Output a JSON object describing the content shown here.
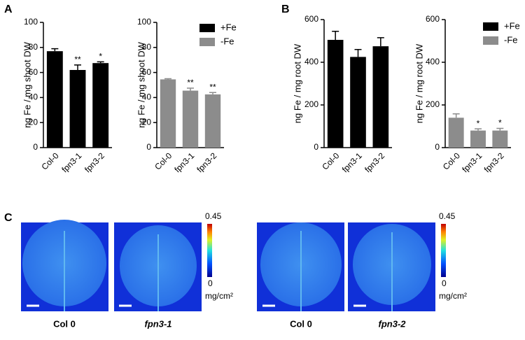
{
  "panels": [
    "A",
    "B",
    "C"
  ],
  "chart_data": [
    {
      "type": "bar",
      "ylabel": "ng Fe / mg shoot DW",
      "categories": [
        "Col-0",
        "fpn3-1",
        "fpn3-2"
      ],
      "values": [
        77,
        62,
        67.5
      ],
      "errors": [
        2,
        4,
        1
      ],
      "annotations": [
        null,
        "**",
        "*"
      ],
      "color": "#000000",
      "ylim": [
        0,
        100
      ],
      "yticks": [
        0,
        20,
        40,
        60,
        80,
        100
      ]
    },
    {
      "type": "bar",
      "ylabel": "ng Fe / mg shoot DW",
      "categories": [
        "Col-0",
        "fpn3-1",
        "fpn3-2"
      ],
      "values": [
        54.5,
        45.5,
        42.5
      ],
      "errors": [
        0.5,
        2,
        1.5
      ],
      "annotations": [
        null,
        "**",
        "**"
      ],
      "color": "#8c8c8c",
      "ylim": [
        0,
        100
      ],
      "yticks": [
        0,
        20,
        40,
        60,
        80,
        100
      ],
      "legend": [
        {
          "name": "+Fe",
          "color": "#000000"
        },
        {
          "name": "-Fe",
          "color": "#8c8c8c"
        }
      ]
    },
    {
      "type": "bar",
      "ylabel": "ng Fe / mg root DW",
      "categories": [
        "Col-0",
        "fpn3-1",
        "fpn3-2"
      ],
      "values": [
        505,
        425,
        475
      ],
      "errors": [
        40,
        35,
        40
      ],
      "annotations": [
        null,
        null,
        null
      ],
      "color": "#000000",
      "ylim": [
        0,
        600
      ],
      "yticks": [
        0,
        200,
        400,
        600
      ]
    },
    {
      "type": "bar",
      "ylabel": "ng Fe / mg root DW",
      "categories": [
        "Col-0",
        "fpn3-1",
        "fpn3-2"
      ],
      "values": [
        140,
        80,
        80
      ],
      "errors": [
        18,
        8,
        10
      ],
      "annotations": [
        null,
        "*",
        "*"
      ],
      "color": "#8c8c8c",
      "ylim": [
        0,
        600
      ],
      "yticks": [
        0,
        200,
        400,
        600
      ],
      "legend": [
        {
          "name": "+Fe",
          "color": "#000000"
        },
        {
          "name": "-Fe",
          "color": "#8c8c8c"
        }
      ]
    }
  ],
  "images": {
    "captions": [
      "Col 0",
      "fpn3-1",
      "Col 0",
      "fpn3-2"
    ],
    "colorbar_max": "0.45",
    "colorbar_min": "0",
    "colorbar_unit": "mg/cm²"
  }
}
